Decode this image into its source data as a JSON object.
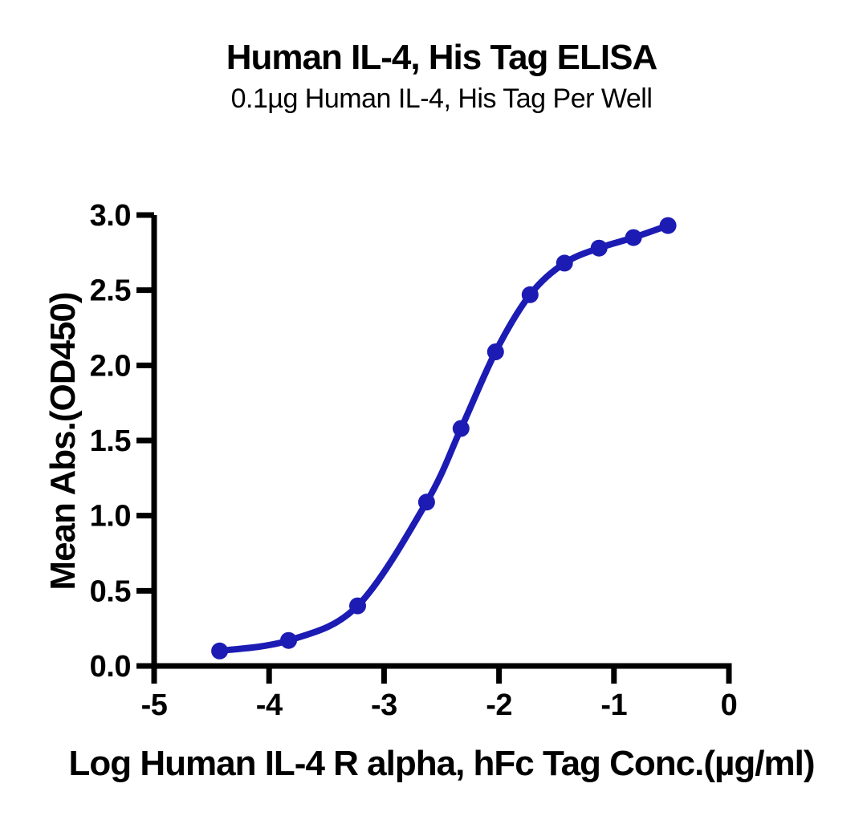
{
  "page": {
    "background": "#ffffff"
  },
  "chart_data": {
    "type": "line",
    "title": "Human IL-4, His Tag ELISA",
    "subtitle": "0.1µg Human IL-4, His Tag Per Well",
    "xlabel": "Log Human IL-4 R alpha, hFc Tag Conc.(µg/ml)",
    "ylabel": "Mean Abs.(OD450)",
    "xlim": [
      -5,
      0
    ],
    "ylim": [
      0,
      3
    ],
    "grid": false,
    "legend": "none",
    "axis_color": "#000000",
    "x_ticks": [
      {
        "value": -5,
        "label": "-5"
      },
      {
        "value": -4,
        "label": "-4"
      },
      {
        "value": -3,
        "label": "-3"
      },
      {
        "value": -2,
        "label": "-2"
      },
      {
        "value": -1,
        "label": "-1"
      },
      {
        "value": 0,
        "label": "0"
      }
    ],
    "y_ticks": [
      {
        "value": 0.0,
        "label": "0.0"
      },
      {
        "value": 0.5,
        "label": "0.5"
      },
      {
        "value": 1.0,
        "label": "1.0"
      },
      {
        "value": 1.5,
        "label": "1.5"
      },
      {
        "value": 2.0,
        "label": "2.0"
      },
      {
        "value": 2.5,
        "label": "2.5"
      },
      {
        "value": 3.0,
        "label": "3.0"
      }
    ],
    "series": [
      {
        "name": "Human IL-4 R alpha, hFc Tag",
        "color": "#1c1cb4",
        "marker": "circle",
        "points": [
          {
            "x": -4.43,
            "y": 0.1
          },
          {
            "x": -3.83,
            "y": 0.17
          },
          {
            "x": -3.23,
            "y": 0.4
          },
          {
            "x": -2.63,
            "y": 1.09
          },
          {
            "x": -2.33,
            "y": 1.58
          },
          {
            "x": -2.03,
            "y": 2.09
          },
          {
            "x": -1.73,
            "y": 2.47
          },
          {
            "x": -1.43,
            "y": 2.68
          },
          {
            "x": -1.13,
            "y": 2.78
          },
          {
            "x": -0.83,
            "y": 2.85
          },
          {
            "x": -0.53,
            "y": 2.93
          }
        ]
      }
    ]
  }
}
